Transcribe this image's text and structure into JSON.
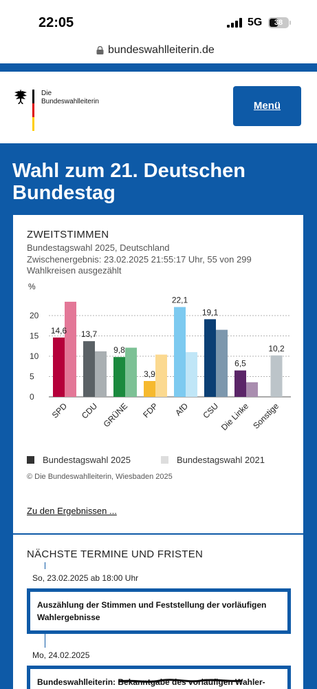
{
  "status_bar": {
    "time": "22:05",
    "network": "5G",
    "battery": "38"
  },
  "browser": {
    "url": "bundeswahlleiterin.de"
  },
  "header": {
    "logo_line1": "Die",
    "logo_line2": "Bundeswahlleiterin",
    "menu_label": "Menü"
  },
  "page": {
    "title": "Wahl zum 21. Deutschen Bundestag"
  },
  "results_card": {
    "kicker": "ZWEITSTIMMEN",
    "subtitle": "Bundestagswahl 2025, Deutschland",
    "interim": "Zwischenergebnis: 23.02.2025 21:55:17 Uhr, 55 von 299 Wahlkreisen ausgezählt",
    "copyright": "© Die Bundeswahlleiterin, Wiesbaden 2025",
    "results_link": "Zu den Ergebnissen ..."
  },
  "chart_data": {
    "type": "bar",
    "ylabel": "%",
    "ylim": [
      0,
      25
    ],
    "yticks": [
      0,
      5,
      10,
      15,
      20
    ],
    "grid": true,
    "legend_position": "bottom",
    "categories": [
      "SPD",
      "CDU",
      "GRÜNE",
      "FDP",
      "AfD",
      "CSU",
      "Die Linke",
      "Sonstige"
    ],
    "series": [
      {
        "name": "Bundestagswahl 2025",
        "values": [
          14.6,
          13.7,
          9.8,
          3.9,
          22.1,
          19.1,
          6.5,
          10.2
        ]
      },
      {
        "name": "Bundestagswahl 2021",
        "values": [
          23.4,
          11.2,
          12.1,
          10.4,
          11.0,
          16.5,
          3.6,
          null
        ]
      }
    ],
    "colors_2025": [
      "#b5003a",
      "#5a6165",
      "#1b8a3e",
      "#f6b92e",
      "#7dcaf0",
      "#0b3f74",
      "#5b2568",
      "#bcc4c9"
    ],
    "colors_2021": [
      "#e37797",
      "#a9afb2",
      "#7cc195",
      "#fbd990",
      "#c0e6f7",
      "#7c97ad",
      "#a98daf",
      "#dfe3e5"
    ],
    "legend_colors": [
      "#333333",
      "#dddddd"
    ]
  },
  "deadlines_card": {
    "heading": "NÄCHSTE TERMINE UND FRISTEN",
    "items": [
      {
        "date": "So, 23.02.2025 ab 18:00 Uhr",
        "text": "Auszählung der Stimmen und Feststellung der vorläufigen Wahlergebnisse"
      },
      {
        "date": "Mo, 24.02.2025",
        "text": "Bundeswahlleiterin: Bekanntgabe des vorläufigen Wahler-"
      }
    ]
  }
}
